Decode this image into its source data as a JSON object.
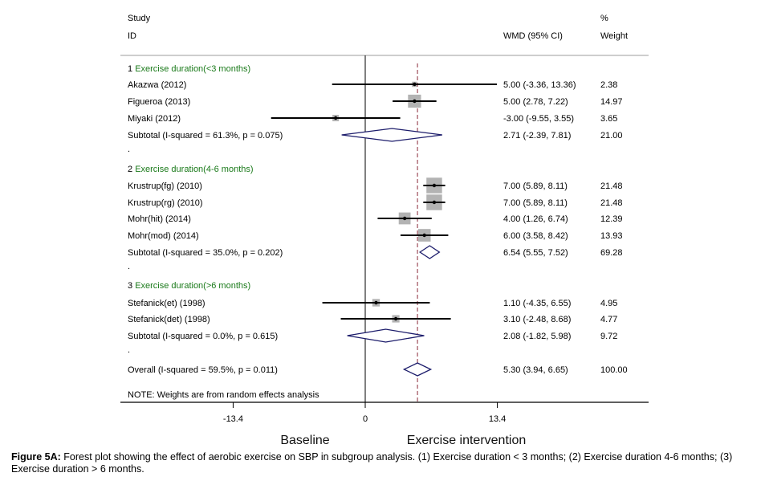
{
  "chart_data": {
    "type": "forest",
    "title": "",
    "header": {
      "study_col": [
        "Study",
        "ID"
      ],
      "effect_col": "WMD (95% CI)",
      "weight_col": [
        "%",
        "Weight"
      ]
    },
    "xaxis": {
      "ticks": [
        -13.4,
        0,
        13.4
      ],
      "tick_labels": [
        "-13.4",
        "0",
        "13.4"
      ],
      "range": [
        -13.4,
        13.4
      ],
      "left_label": "Baseline",
      "right_label": "Exercise intervention"
    },
    "null_line": 0,
    "overall_line": 5.3,
    "groups": [
      {
        "number": "1",
        "label": "Exercise duration(<3 months)",
        "studies": [
          {
            "name": "Akazwa  (2012)",
            "effect": 5.0,
            "lower": -3.36,
            "upper": 13.36,
            "ci_text": "5.00 (-3.36, 13.36)",
            "weight": 2.38,
            "weight_text": "2.38"
          },
          {
            "name": "Figueroa (2013)",
            "effect": 5.0,
            "lower": 2.78,
            "upper": 7.22,
            "ci_text": "5.00 (2.78, 7.22)",
            "weight": 14.97,
            "weight_text": "14.97"
          },
          {
            "name": "Miyaki  (2012)",
            "effect": -3.0,
            "lower": -9.55,
            "upper": 3.55,
            "ci_text": "-3.00 (-9.55, 3.55)",
            "weight": 3.65,
            "weight_text": "3.65"
          }
        ],
        "subtotal": {
          "label": "Subtotal  (I-squared = 61.3%, p = 0.075)",
          "effect": 2.71,
          "lower": -2.39,
          "upper": 7.81,
          "ci_text": "2.71 (-2.39, 7.81)",
          "weight_text": "21.00"
        }
      },
      {
        "number": "2",
        "label": "Exercise duration(4-6 months)",
        "studies": [
          {
            "name": "Krustrup(fg) (2010)",
            "effect": 7.0,
            "lower": 5.89,
            "upper": 8.11,
            "ci_text": "7.00 (5.89, 8.11)",
            "weight": 21.48,
            "weight_text": "21.48"
          },
          {
            "name": "Krustrup(rg) (2010)",
            "effect": 7.0,
            "lower": 5.89,
            "upper": 8.11,
            "ci_text": "7.00 (5.89, 8.11)",
            "weight": 21.48,
            "weight_text": "21.48"
          },
          {
            "name": "Mohr(hit) (2014)",
            "effect": 4.0,
            "lower": 1.26,
            "upper": 6.74,
            "ci_text": "4.00 (1.26, 6.74)",
            "weight": 12.39,
            "weight_text": "12.39"
          },
          {
            "name": "Mohr(mod) (2014)",
            "effect": 6.0,
            "lower": 3.58,
            "upper": 8.42,
            "ci_text": "6.00 (3.58, 8.42)",
            "weight": 13.93,
            "weight_text": "13.93"
          }
        ],
        "subtotal": {
          "label": "Subtotal  (I-squared = 35.0%, p = 0.202)",
          "effect": 6.54,
          "lower": 5.55,
          "upper": 7.52,
          "ci_text": "6.54 (5.55, 7.52)",
          "weight_text": "69.28"
        }
      },
      {
        "number": "3",
        "label": "Exercise duration(>6 months)",
        "studies": [
          {
            "name": "Stefanick(et) (1998)",
            "effect": 1.1,
            "lower": -4.35,
            "upper": 6.55,
            "ci_text": "1.10 (-4.35, 6.55)",
            "weight": 4.95,
            "weight_text": "4.95"
          },
          {
            "name": "Stefanick(det) (1998)",
            "effect": 3.1,
            "lower": -2.48,
            "upper": 8.68,
            "ci_text": "3.10 (-2.48, 8.68)",
            "weight": 4.77,
            "weight_text": "4.77"
          }
        ],
        "subtotal": {
          "label": "Subtotal  (I-squared = 0.0%, p = 0.615)",
          "effect": 2.08,
          "lower": -1.82,
          "upper": 5.98,
          "ci_text": "2.08 (-1.82, 5.98)",
          "weight_text": "9.72"
        }
      }
    ],
    "overall": {
      "label": "Overall  (I-squared = 59.5%, p = 0.011)",
      "effect": 5.3,
      "lower": 3.94,
      "upper": 6.65,
      "ci_text": "5.30 (3.94, 6.65)",
      "weight_text": "100.00"
    },
    "note": "NOTE: Weights are from random effects analysis",
    "spacer_text": ".",
    "colors": {
      "group_label": "#1a7a1a",
      "square": "#b3b3b3",
      "diamond": "#1c1c6b",
      "overall_line": "#8b2a3a",
      "divider": "#bdbdbd"
    }
  },
  "caption": {
    "label": "Figure 5A:",
    "text": " Forest plot showing the effect of aerobic exercise on SBP in subgroup analysis. (1) Exercise duration < 3 months; (2) Exercise duration 4-6 months; (3) Exercise duration > 6 months."
  }
}
